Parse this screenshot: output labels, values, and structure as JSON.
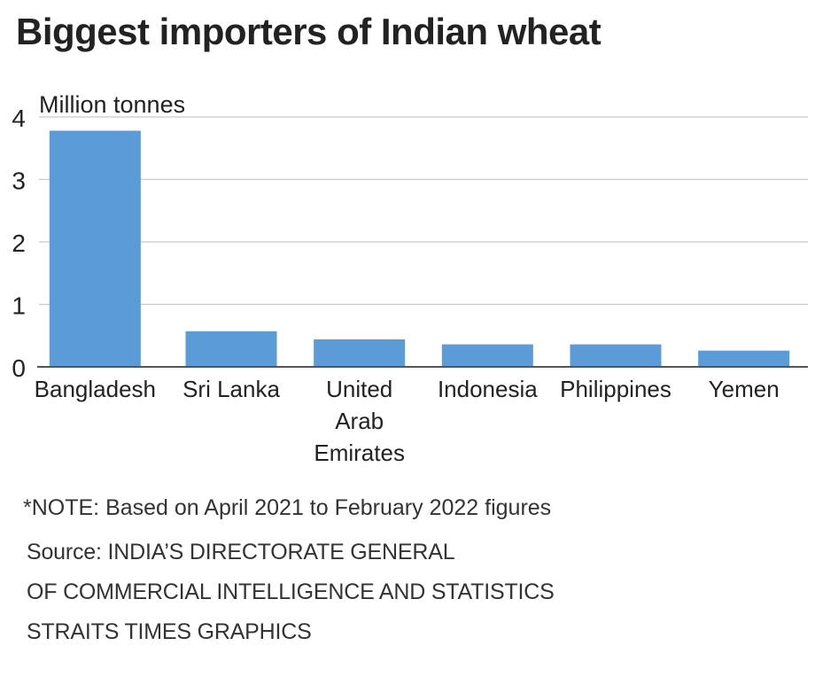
{
  "chart_data": {
    "type": "bar",
    "title": "Biggest importers of Indian wheat",
    "ylabel": "Million tonnes",
    "xlabel": "",
    "categories": [
      "Bangladesh",
      "Sri Lanka",
      "United Arab Emirates",
      "Indonesia",
      "Philippines",
      "Yemen"
    ],
    "category_label_lines": [
      [
        "Bangladesh"
      ],
      [
        "Sri Lanka"
      ],
      [
        "United",
        "Arab",
        "Emirates"
      ],
      [
        "Indonesia"
      ],
      [
        "Philippines"
      ],
      [
        "Yemen"
      ]
    ],
    "values": [
      3.78,
      0.57,
      0.44,
      0.36,
      0.36,
      0.26
    ],
    "ylim": [
      0,
      4
    ],
    "yticks": [
      0,
      1,
      2,
      3,
      4
    ],
    "grid": true,
    "legend": "none",
    "bar_color": "#5b9bd8",
    "grid_color": "#c8c8c8",
    "axis_color": "#555555",
    "text_color": "#222222"
  },
  "footer": {
    "note": "*NOTE: Based on April 2021 to February 2022 figures",
    "source_line1": "Source: INDIA’S DIRECTORATE GENERAL",
    "source_line2": "OF COMMERCIAL INTELLIGENCE AND STATISTICS",
    "credit": "STRAITS TIMES GRAPHICS"
  }
}
